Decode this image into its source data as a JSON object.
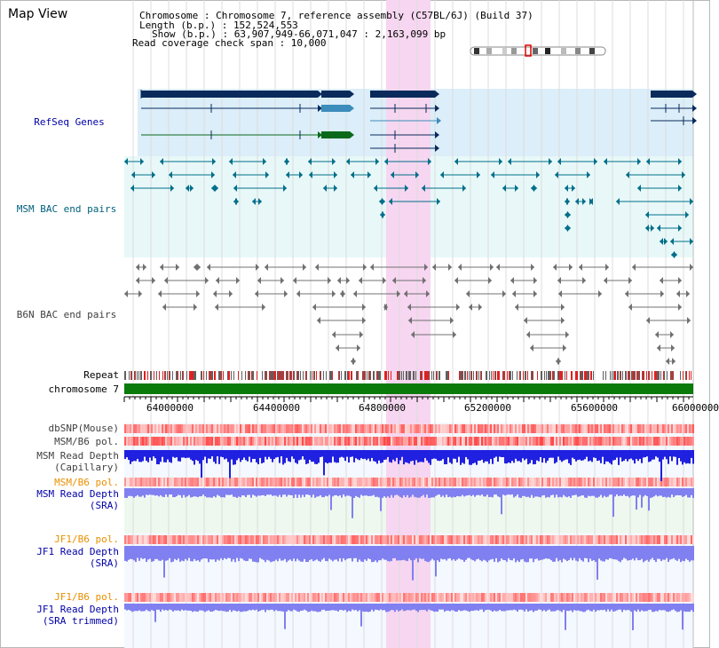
{
  "page": {
    "title": "Map View"
  },
  "info": {
    "line1": "Chromosome     : Chromosome 7, reference assembly (C57BL/6J) (Build 37)",
    "line2": "Length (b.p.) : 152,524,553",
    "line3": "Show (b.p.) : 63,907,949-66,071,047 : 2,163,099 bp",
    "line4": "Read coverage check span : 10,000"
  },
  "tracks": {
    "refseq": "RefSeq Genes",
    "msm_bac": "MSM BAC end pairs",
    "b6n_bac": "B6N BAC end pairs",
    "repeat": "Repeat",
    "chromosome": "chromosome 7",
    "dbsnp": "dbSNP(Mouse)",
    "msm_b6_pol_1": "MSM/B6 pol.",
    "msm_depth_cap_1": "MSM Read Depth",
    "msm_depth_cap_2": "(Capillary)",
    "msm_b6_pol_2": "MSM/B6 pol.",
    "msm_depth_sra_1": "MSM Read Depth",
    "msm_depth_sra_2": "(SRA)",
    "jf1_b6_pol_1": "JF1/B6 pol.",
    "jf1_depth_sra_1": "JF1 Read Depth",
    "jf1_depth_sra_2": "(SRA)",
    "jf1_b6_pol_2": "JF1/B6 pol.",
    "jf1_depth_trim_1": "JF1 Read Depth",
    "jf1_depth_trim_2": "(SRA trimmed)"
  },
  "axis": {
    "ticks": [
      "64000000",
      "64400000",
      "64800000",
      "65200000",
      "65600000",
      "66000000"
    ]
  },
  "colors": {
    "refseq_bg": "#dbeef9",
    "msm_bg": "#e8f8f8",
    "highlight": "#f6d6f0",
    "chromosome": "#0a7a0a",
    "depth_blue": "#2020e0",
    "depth_lavender": "#8080f0",
    "pol_red": "#f04040",
    "bac_teal": "#006f8a",
    "bac_grey": "#707070"
  }
}
